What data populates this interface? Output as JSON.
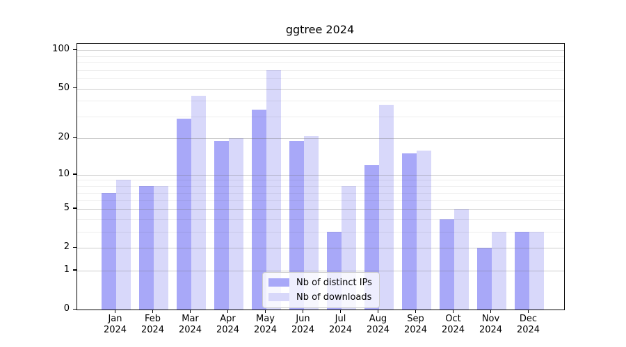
{
  "title": "ggtree 2024",
  "chart_data": {
    "type": "bar",
    "title": "ggtree 2024",
    "categories": [
      "Jan 2024",
      "Feb 2024",
      "Mar 2024",
      "Apr 2024",
      "May 2024",
      "Jun 2024",
      "Jul 2024",
      "Aug 2024",
      "Sep 2024",
      "Oct 2024",
      "Nov 2024",
      "Dec 2024"
    ],
    "series": [
      {
        "name": "Nb of distinct IPs",
        "color": "#a8a8f8",
        "values": [
          7,
          8,
          29,
          19,
          34,
          19,
          3,
          12,
          15,
          4,
          2,
          3
        ]
      },
      {
        "name": "Nb of downloads",
        "color": "#d8d8fa",
        "values": [
          9,
          8,
          44,
          20,
          70,
          21,
          8,
          37,
          16,
          5,
          3,
          3
        ]
      }
    ],
    "xlabel": "",
    "ylabel": "",
    "yscale": "log1p",
    "ylim": [
      0,
      112
    ],
    "yticks": [
      0,
      1,
      2,
      5,
      10,
      20,
      50,
      100
    ],
    "minor_gridlines": [
      3,
      4,
      6,
      7,
      8,
      9,
      30,
      40,
      60,
      70,
      80,
      90
    ],
    "grid": true,
    "legend_position": "lower center"
  },
  "legend": {
    "items": [
      {
        "label": "Nb of distinct IPs"
      },
      {
        "label": "Nb of downloads"
      }
    ]
  }
}
